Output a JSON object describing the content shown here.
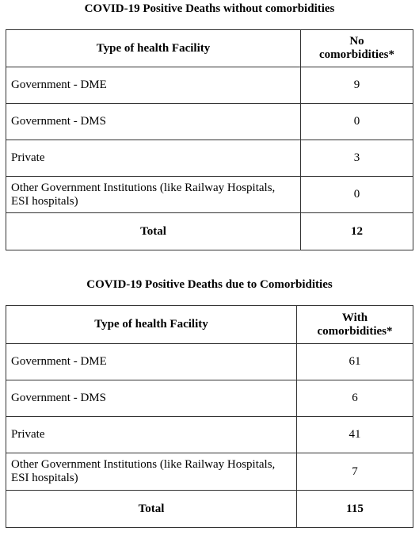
{
  "sections": [
    {
      "title": "COVID-19 Positive Deaths without comorbidities",
      "table": {
        "header": [
          "Type of health Facility",
          "No comorbidities*"
        ],
        "rows": [
          [
            "Government - DME",
            9
          ],
          [
            "Government - DMS",
            0
          ],
          [
            "Private",
            3
          ],
          [
            "Other Government Institutions (like Railway Hospitals, ESI hospitals)",
            0
          ]
        ],
        "total": [
          "Total",
          12
        ]
      }
    },
    {
      "title": "COVID-19 Positive Deaths due to Comorbidities",
      "table": {
        "header": [
          "Type of health Facility",
          "With comorbidities*"
        ],
        "rows": [
          [
            "Government - DME",
            61
          ],
          [
            "Government - DMS",
            6
          ],
          [
            "Private",
            41
          ],
          [
            "Other Government Institutions (like Railway Hospitals, ESI hospitals)",
            7
          ]
        ],
        "total": [
          "Total",
          115
        ]
      }
    }
  ]
}
